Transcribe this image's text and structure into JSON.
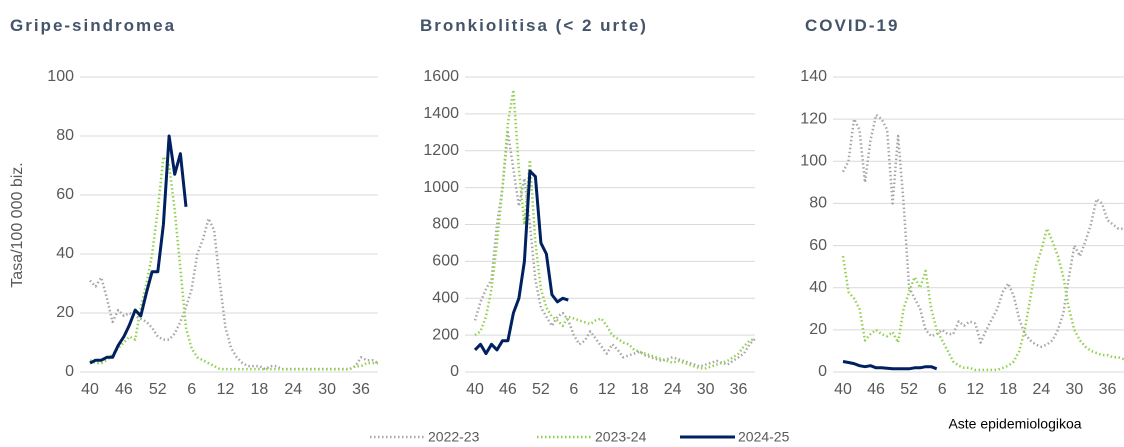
{
  "chart_data": [
    {
      "type": "line",
      "title": "Gripe-sindromea",
      "ylabel": "Tasa/100 000 biz.",
      "categories": [
        "40",
        null,
        null,
        null,
        null,
        null,
        "46",
        null,
        null,
        null,
        null,
        null,
        "52",
        null,
        null,
        null,
        null,
        null,
        "6",
        null,
        null,
        null,
        null,
        null,
        "12",
        null,
        null,
        null,
        null,
        null,
        "18",
        null,
        null,
        null,
        null,
        null,
        "24",
        null,
        null,
        null,
        null,
        null,
        "30",
        null,
        null,
        null,
        null,
        null,
        "36",
        null,
        null,
        null
      ],
      "ylim": [
        0,
        100
      ],
      "yticks": [
        0,
        20,
        40,
        60,
        80,
        100
      ],
      "grid": true,
      "series": [
        {
          "name": "2022-23",
          "color": "#a6a6a6",
          "style": "dotted",
          "values": [
            31,
            29,
            32,
            25,
            17,
            21,
            19,
            20,
            19,
            18,
            17,
            15,
            12,
            11,
            11,
            13,
            17,
            22,
            28,
            40,
            45,
            52,
            48,
            30,
            15,
            8,
            5,
            3,
            2,
            2,
            2,
            1,
            2,
            2,
            1,
            1,
            1,
            1,
            1,
            1,
            1,
            1,
            1,
            1,
            1,
            1,
            1,
            2,
            5,
            4,
            4,
            3
          ]
        },
        {
          "name": "2023-24",
          "color": "#92d050",
          "style": "dotted",
          "values": [
            4,
            3,
            3,
            4,
            6,
            8,
            10,
            12,
            11,
            22,
            30,
            40,
            55,
            73,
            70,
            55,
            35,
            15,
            8,
            5,
            4,
            3,
            2,
            1,
            1,
            1,
            1,
            1,
            1,
            1,
            1,
            1,
            1,
            1,
            1,
            1,
            1,
            1,
            1,
            1,
            1,
            1,
            1,
            1,
            1,
            1,
            1,
            2,
            2,
            3,
            3,
            3
          ]
        },
        {
          "name": "2024-25",
          "color": "#002060",
          "style": "solid",
          "values": [
            3,
            4,
            4,
            5,
            5,
            9,
            12,
            16,
            21,
            19,
            27,
            34,
            34,
            50,
            80,
            67,
            74,
            56,
            null,
            null,
            null,
            null,
            null,
            null,
            null,
            null,
            null,
            null,
            null,
            null,
            null,
            null,
            null,
            null,
            null,
            null,
            null,
            null,
            null,
            null,
            null,
            null,
            null,
            null,
            null,
            null,
            null,
            null,
            null,
            null,
            null,
            null
          ]
        }
      ]
    },
    {
      "type": "line",
      "title": "Bronkiolitisa (< 2 urte)",
      "categories": [
        "40",
        null,
        null,
        null,
        null,
        null,
        "46",
        null,
        null,
        null,
        null,
        null,
        "52",
        null,
        null,
        null,
        null,
        null,
        "6",
        null,
        null,
        null,
        null,
        null,
        "12",
        null,
        null,
        null,
        null,
        null,
        "18",
        null,
        null,
        null,
        null,
        null,
        "24",
        null,
        null,
        null,
        null,
        null,
        "30",
        null,
        null,
        null,
        null,
        null,
        "36",
        null,
        null,
        null
      ],
      "ylim": [
        0,
        1600
      ],
      "yticks": [
        0,
        200,
        400,
        600,
        800,
        1000,
        1200,
        1400,
        1600
      ],
      "grid": true,
      "series": [
        {
          "name": "2022-23",
          "color": "#a6a6a6",
          "style": "dotted",
          "values": [
            280,
            380,
            450,
            500,
            800,
            1000,
            1300,
            1100,
            900,
            1050,
            800,
            500,
            350,
            300,
            250,
            300,
            320,
            280,
            200,
            150,
            170,
            220,
            180,
            140,
            100,
            150,
            120,
            80,
            90,
            100,
            110,
            90,
            80,
            70,
            60,
            70,
            80,
            70,
            60,
            50,
            40,
            30,
            40,
            50,
            60,
            50,
            40,
            60,
            80,
            100,
            150,
            180
          ]
        },
        {
          "name": "2023-24",
          "color": "#92d050",
          "style": "dotted",
          "values": [
            200,
            220,
            300,
            450,
            700,
            1000,
            1350,
            1530,
            1100,
            800,
            1150,
            700,
            450,
            350,
            300,
            280,
            250,
            300,
            290,
            280,
            270,
            260,
            280,
            290,
            250,
            200,
            180,
            160,
            150,
            120,
            110,
            100,
            90,
            80,
            70,
            60,
            50,
            60,
            50,
            40,
            30,
            20,
            20,
            30,
            40,
            50,
            60,
            80,
            100,
            140,
            170,
            180
          ]
        },
        {
          "name": "2024-25",
          "color": "#002060",
          "style": "solid",
          "values": [
            120,
            150,
            100,
            150,
            120,
            170,
            170,
            320,
            400,
            600,
            1090,
            1060,
            700,
            640,
            420,
            380,
            400,
            390,
            null,
            null,
            null,
            null,
            null,
            null,
            null,
            null,
            null,
            null,
            null,
            null,
            null,
            null,
            null,
            null,
            null,
            null,
            null,
            null,
            null,
            null,
            null,
            null,
            null,
            null,
            null,
            null,
            null,
            null,
            null,
            null,
            null,
            null
          ]
        }
      ]
    },
    {
      "type": "line",
      "title": "COVID-19",
      "xlabel": "Aste epidemiologikoa",
      "categories": [
        "40",
        null,
        null,
        null,
        null,
        null,
        "46",
        null,
        null,
        null,
        null,
        null,
        "52",
        null,
        null,
        null,
        null,
        null,
        "6",
        null,
        null,
        null,
        null,
        null,
        "12",
        null,
        null,
        null,
        null,
        null,
        "18",
        null,
        null,
        null,
        null,
        null,
        "24",
        null,
        null,
        null,
        null,
        null,
        "30",
        null,
        null,
        null,
        null,
        null,
        "36",
        null,
        null,
        null
      ],
      "ylim": [
        0,
        140
      ],
      "yticks": [
        0,
        20,
        40,
        60,
        80,
        100,
        120,
        140
      ],
      "grid": true,
      "series": [
        {
          "name": "2022-23",
          "color": "#a6a6a6",
          "style": "dotted",
          "values": [
            95,
            100,
            120,
            115,
            90,
            110,
            122,
            120,
            115,
            80,
            112,
            80,
            40,
            35,
            30,
            20,
            17,
            18,
            20,
            18,
            18,
            24,
            22,
            24,
            23,
            14,
            20,
            25,
            30,
            38,
            42,
            36,
            25,
            18,
            15,
            13,
            12,
            13,
            15,
            20,
            28,
            45,
            60,
            55,
            62,
            70,
            82,
            80,
            72,
            70,
            68,
            68
          ]
        },
        {
          "name": "2023-24",
          "color": "#92d050",
          "style": "dotted",
          "values": [
            55,
            38,
            35,
            30,
            15,
            18,
            20,
            18,
            17,
            19,
            14,
            30,
            38,
            45,
            40,
            48,
            30,
            20,
            15,
            10,
            5,
            3,
            2,
            2,
            1,
            1,
            1,
            1,
            1,
            2,
            3,
            5,
            10,
            20,
            35,
            50,
            58,
            68,
            62,
            55,
            45,
            30,
            20,
            15,
            12,
            10,
            9,
            8,
            8,
            7,
            7,
            6
          ]
        },
        {
          "name": "2024-25",
          "color": "#002060",
          "style": "solid",
          "values": [
            5,
            4.5,
            4,
            3,
            2.5,
            3,
            2,
            2,
            1.8,
            1.5,
            1.5,
            1.5,
            1.5,
            2,
            2,
            2.5,
            2.5,
            1.5,
            null,
            null,
            null,
            null,
            null,
            null,
            null,
            null,
            null,
            null,
            null,
            null,
            null,
            null,
            null,
            null,
            null,
            null,
            null,
            null,
            null,
            null,
            null,
            null,
            null,
            null,
            null,
            null,
            null,
            null,
            null,
            null,
            null,
            null
          ]
        }
      ]
    }
  ]
}
